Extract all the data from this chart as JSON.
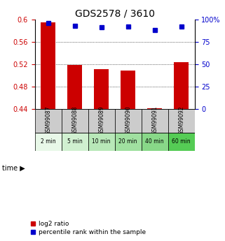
{
  "title": "GDS2578 / 3610",
  "samples": [
    "GSM99087",
    "GSM99088",
    "GSM99089",
    "GSM99090",
    "GSM99091",
    "GSM99092"
  ],
  "time_labels": [
    "2 min",
    "5 min",
    "10 min",
    "20 min",
    "40 min",
    "60 min"
  ],
  "log2_values": [
    0.595,
    0.518,
    0.511,
    0.508,
    0.441,
    0.523
  ],
  "percentile_values": [
    96,
    93,
    91,
    92,
    88,
    92
  ],
  "bar_color": "#cc0000",
  "dot_color": "#0000cc",
  "ylim_left": [
    0.44,
    0.6
  ],
  "ylim_right": [
    0,
    100
  ],
  "yticks_left": [
    0.44,
    0.48,
    0.52,
    0.56,
    0.6
  ],
  "yticks_right": [
    0,
    25,
    50,
    75,
    100
  ],
  "ytick_right_labels": [
    "0",
    "25",
    "50",
    "75",
    "100%"
  ],
  "grid_values": [
    0.48,
    0.52,
    0.56
  ],
  "bg_plot": "#ffffff",
  "bg_gsm": "#cccccc",
  "time_colors": [
    "#e8f8e8",
    "#d0f0d0",
    "#b8e8b8",
    "#a0e0a0",
    "#88d888",
    "#55cc55"
  ],
  "title_fontsize": 10,
  "tick_fontsize": 7,
  "bar_width": 0.55,
  "dot_size": 5
}
